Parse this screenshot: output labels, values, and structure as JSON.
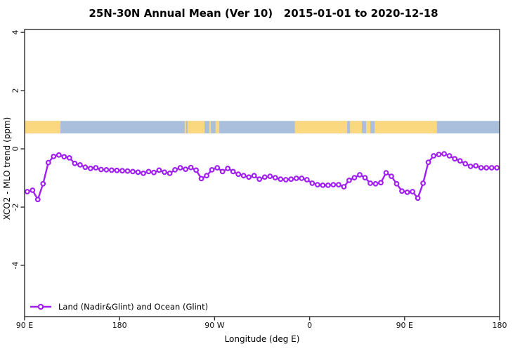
{
  "colors": {
    "series": "#A020F0",
    "land": "#FAD880",
    "ocean": "#A9BFDB",
    "axis": "#2e2e2e",
    "text": "#000000",
    "background": "#ffffff"
  },
  "legend": {
    "label": "Land (Nadir&Glint) and Ocean (Glint)"
  },
  "chart_data": {
    "type": "line",
    "title": "25N-30N Annual Mean (Ver 10)   2015-01-01 to 2020-12-18",
    "xlabel": "Longitude (deg E)",
    "ylabel": "XCO2 - MLO trend (ppm)",
    "grid": false,
    "legend_position": "bottom-left-inside",
    "x_tick_labels": [
      "90 E",
      "180",
      "90 W",
      "0",
      "90 E",
      "180"
    ],
    "x_axis_note": "longitude axis spans 450 deg eastward from 90E, wrapping 90E-180-90W-0-90E-180",
    "y_tick_values": [
      4,
      2,
      0,
      -2,
      -4
    ],
    "ylim": [
      -5.76,
      4.1
    ],
    "x_start_deg": 92.5,
    "x_step_deg": 5,
    "x_span_deg": 450,
    "series": [
      {
        "name": "Land (Nadir&Glint) and Ocean (Glint)",
        "color": "#A020F0",
        "marker": "open-circle",
        "values": [
          -1.47,
          -1.42,
          -1.74,
          -1.2,
          -0.47,
          -0.26,
          -0.21,
          -0.27,
          -0.31,
          -0.5,
          -0.55,
          -0.63,
          -0.67,
          -0.65,
          -0.71,
          -0.72,
          -0.73,
          -0.74,
          -0.75,
          -0.76,
          -0.78,
          -0.8,
          -0.84,
          -0.78,
          -0.81,
          -0.73,
          -0.8,
          -0.84,
          -0.72,
          -0.65,
          -0.7,
          -0.64,
          -0.73,
          -1.02,
          -0.92,
          -0.72,
          -0.65,
          -0.78,
          -0.67,
          -0.78,
          -0.87,
          -0.92,
          -0.97,
          -0.92,
          -1.04,
          -0.97,
          -0.94,
          -0.99,
          -1.04,
          -1.06,
          -1.04,
          -1.01,
          -1.01,
          -1.06,
          -1.18,
          -1.23,
          -1.25,
          -1.25,
          -1.23,
          -1.23,
          -1.3,
          -1.08,
          -0.99,
          -0.89,
          -0.99,
          -1.18,
          -1.2,
          -1.16,
          -0.82,
          -0.94,
          -1.2,
          -1.45,
          -1.49,
          -1.47,
          -1.69,
          -1.18,
          -0.46,
          -0.24,
          -0.19,
          -0.17,
          -0.24,
          -0.34,
          -0.41,
          -0.51,
          -0.6,
          -0.58,
          -0.65,
          -0.65,
          -0.65,
          -0.65
        ]
      }
    ],
    "map_strip": {
      "description": "25N-30N latitude band world-map strip (land=tan, ocean=blue)",
      "y_range": [
        0.53,
        0.96
      ],
      "ocean_color": "#A9BFDB",
      "land_color": "#FAD880",
      "land_segments_frac": [
        [
          0.0,
          0.0754
        ],
        [
          0.337,
          0.34
        ],
        [
          0.343,
          0.379
        ],
        [
          0.389,
          0.392
        ],
        [
          0.402,
          0.41
        ],
        [
          0.569,
          0.679
        ],
        [
          0.685,
          0.71
        ],
        [
          0.719,
          0.728
        ],
        [
          0.737,
          0.868
        ]
      ]
    }
  }
}
